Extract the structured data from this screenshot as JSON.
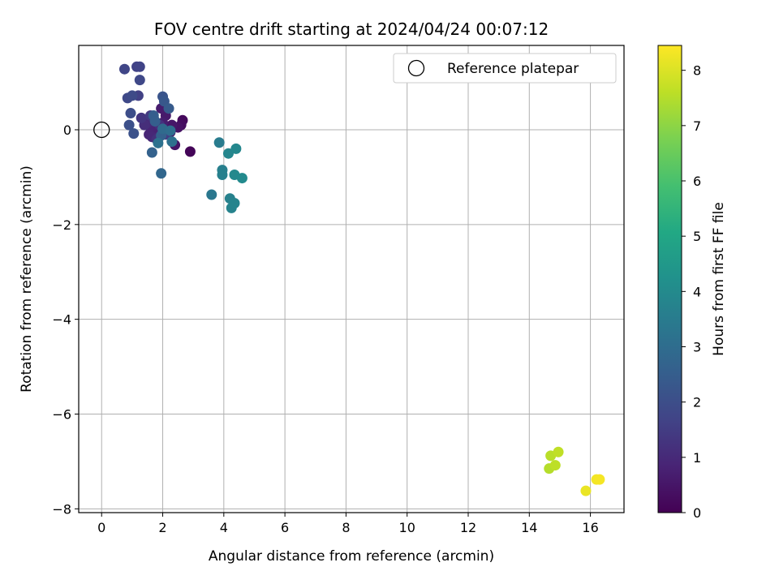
{
  "chart_data": {
    "type": "scatter",
    "title": "FOV centre drift starting at 2024/04/24 00:07:12",
    "xlabel": "Angular distance from reference (arcmin)",
    "ylabel": "Rotation from reference (arcmin)",
    "xlim": [
      -0.75,
      17.1
    ],
    "ylim": [
      -8.08,
      1.78
    ],
    "xticks": [
      0,
      2,
      4,
      6,
      8,
      10,
      12,
      14,
      16
    ],
    "yticks": [
      -8,
      -6,
      -4,
      -2,
      0
    ],
    "grid": true,
    "legend": {
      "placement": "top-right",
      "entries": [
        "Reference platepar"
      ]
    },
    "reference_point": {
      "name": "Reference platepar",
      "x": 0,
      "y": 0,
      "marker": "open-circle"
    },
    "colorbar": {
      "label": "Hours from first FF file",
      "range": [
        0,
        8.45
      ],
      "ticks": [
        0,
        1,
        2,
        3,
        4,
        5,
        6,
        7,
        8
      ],
      "colormap": "viridis"
    },
    "points": [
      {
        "x": 2.9,
        "y": -0.46,
        "h": 0.1
      },
      {
        "x": 2.65,
        "y": 0.2,
        "h": 0.2
      },
      {
        "x": 2.6,
        "y": 0.1,
        "h": 0.3
      },
      {
        "x": 2.5,
        "y": 0.05,
        "h": 0.4
      },
      {
        "x": 2.4,
        "y": -0.32,
        "h": 0.45
      },
      {
        "x": 2.3,
        "y": 0.1,
        "h": 0.5
      },
      {
        "x": 2.25,
        "y": -0.05,
        "h": 0.55
      },
      {
        "x": 2.1,
        "y": 0.3,
        "h": 0.6
      },
      {
        "x": 1.95,
        "y": 0.45,
        "h": 0.65
      },
      {
        "x": 2.0,
        "y": 0.15,
        "h": 0.7
      },
      {
        "x": 1.85,
        "y": 0.0,
        "h": 0.75
      },
      {
        "x": 1.75,
        "y": -0.05,
        "h": 0.8
      },
      {
        "x": 1.6,
        "y": 0.05,
        "h": 0.85
      },
      {
        "x": 1.55,
        "y": -0.1,
        "h": 0.9
      },
      {
        "x": 1.65,
        "y": -0.15,
        "h": 0.95
      },
      {
        "x": 1.5,
        "y": 0.15,
        "h": 1.0
      },
      {
        "x": 1.7,
        "y": 0.25,
        "h": 1.05
      },
      {
        "x": 1.4,
        "y": 0.1,
        "h": 1.1
      },
      {
        "x": 1.8,
        "y": -0.2,
        "h": 1.15
      },
      {
        "x": 1.9,
        "y": 0.1,
        "h": 1.2
      },
      {
        "x": 1.3,
        "y": 0.25,
        "h": 1.3
      },
      {
        "x": 1.6,
        "y": 0.3,
        "h": 1.4
      },
      {
        "x": 2.1,
        "y": -0.1,
        "h": 1.5
      },
      {
        "x": 1.2,
        "y": 0.72,
        "h": 1.6
      },
      {
        "x": 1.15,
        "y": 1.33,
        "h": 1.65
      },
      {
        "x": 1.25,
        "y": 1.33,
        "h": 1.7
      },
      {
        "x": 0.75,
        "y": 1.28,
        "h": 1.75
      },
      {
        "x": 1.25,
        "y": 1.05,
        "h": 1.8
      },
      {
        "x": 0.85,
        "y": 0.67,
        "h": 1.85
      },
      {
        "x": 1.0,
        "y": 0.72,
        "h": 1.9
      },
      {
        "x": 0.95,
        "y": 0.35,
        "h": 2.0
      },
      {
        "x": 0.9,
        "y": 0.1,
        "h": 2.05
      },
      {
        "x": 1.05,
        "y": -0.08,
        "h": 2.1
      },
      {
        "x": 2.0,
        "y": 0.7,
        "h": 2.2
      },
      {
        "x": 2.05,
        "y": 0.6,
        "h": 2.3
      },
      {
        "x": 2.2,
        "y": 0.45,
        "h": 2.4
      },
      {
        "x": 1.7,
        "y": 0.3,
        "h": 2.5
      },
      {
        "x": 1.75,
        "y": 0.18,
        "h": 2.55
      },
      {
        "x": 1.95,
        "y": -0.12,
        "h": 2.6
      },
      {
        "x": 1.65,
        "y": -0.48,
        "h": 2.65
      },
      {
        "x": 1.95,
        "y": -0.92,
        "h": 2.8
      },
      {
        "x": 2.0,
        "y": 0.02,
        "h": 2.9
      },
      {
        "x": 2.25,
        "y": -0.02,
        "h": 3.0
      },
      {
        "x": 2.3,
        "y": -0.25,
        "h": 3.1
      },
      {
        "x": 1.85,
        "y": -0.28,
        "h": 3.15
      },
      {
        "x": 3.6,
        "y": -1.37,
        "h": 3.35
      },
      {
        "x": 3.85,
        "y": -0.27,
        "h": 3.5
      },
      {
        "x": 3.95,
        "y": -0.85,
        "h": 3.6
      },
      {
        "x": 3.95,
        "y": -0.95,
        "h": 3.65
      },
      {
        "x": 4.2,
        "y": -1.45,
        "h": 3.7
      },
      {
        "x": 4.25,
        "y": -1.65,
        "h": 3.75
      },
      {
        "x": 4.35,
        "y": -1.55,
        "h": 3.8
      },
      {
        "x": 4.15,
        "y": -0.5,
        "h": 3.85
      },
      {
        "x": 4.4,
        "y": -0.4,
        "h": 3.9
      },
      {
        "x": 4.35,
        "y": -0.95,
        "h": 3.95
      },
      {
        "x": 4.6,
        "y": -1.02,
        "h": 4.0
      },
      {
        "x": 14.65,
        "y": -7.15,
        "h": 7.5
      },
      {
        "x": 14.7,
        "y": -6.88,
        "h": 7.55
      },
      {
        "x": 14.85,
        "y": -7.08,
        "h": 7.6
      },
      {
        "x": 14.95,
        "y": -6.8,
        "h": 7.65
      },
      {
        "x": 15.85,
        "y": -7.62,
        "h": 8.2
      },
      {
        "x": 16.2,
        "y": -7.38,
        "h": 8.3
      },
      {
        "x": 16.3,
        "y": -7.38,
        "h": 8.35
      }
    ]
  }
}
